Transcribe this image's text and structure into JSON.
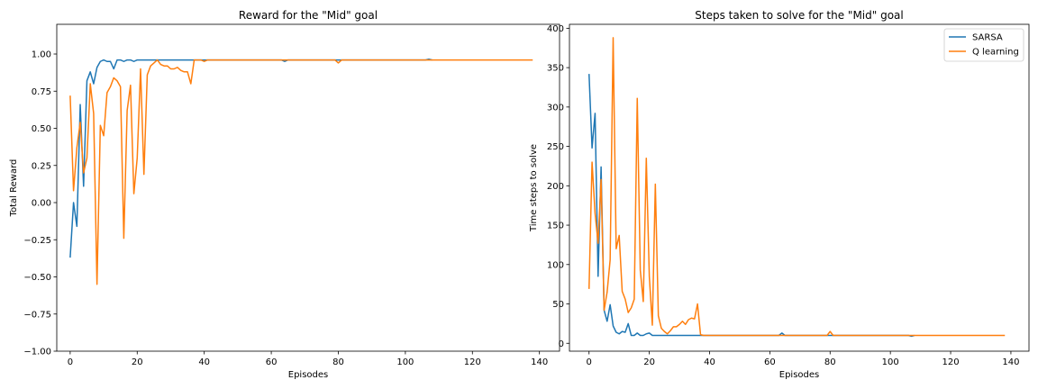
{
  "chart_data": [
    {
      "type": "line",
      "title": "Reward for the \"Mid\" goal",
      "xlabel": "Episodes",
      "ylabel": "Total Reward",
      "xlim": [
        -4,
        146
      ],
      "ylim": [
        -1.0,
        1.2
      ],
      "xticks": [
        0,
        20,
        40,
        60,
        80,
        100,
        120,
        140
      ],
      "xtick_labels": [
        "0",
        "20",
        "40",
        "60",
        "80",
        "100",
        "120",
        "140"
      ],
      "yticks": [
        -1.0,
        -0.75,
        -0.5,
        -0.25,
        0.0,
        0.25,
        0.5,
        0.75,
        1.0
      ],
      "ytick_labels": [
        "−1.00",
        "−0.75",
        "−0.50",
        "−0.25",
        "0.00",
        "0.25",
        "0.50",
        "0.75",
        "1.00"
      ],
      "grid": false,
      "legend": null,
      "series": [
        {
          "color": "#1f77b4",
          "x": [
            0,
            1,
            2,
            3,
            4,
            5,
            6,
            7,
            8,
            9,
            10,
            11,
            12,
            13,
            14,
            15,
            16,
            17,
            18,
            19,
            20,
            21,
            22,
            23,
            24,
            25,
            30,
            35,
            40,
            50,
            60,
            63,
            64,
            65,
            70,
            80,
            90,
            100,
            106,
            107,
            108
          ],
          "y": [
            -0.37,
            0.0,
            -0.16,
            0.66,
            0.11,
            0.82,
            0.88,
            0.8,
            0.91,
            0.95,
            0.96,
            0.95,
            0.95,
            0.9,
            0.96,
            0.96,
            0.95,
            0.96,
            0.96,
            0.95,
            0.96,
            0.96,
            0.96,
            0.96,
            0.96,
            0.96,
            0.96,
            0.96,
            0.96,
            0.96,
            0.96,
            0.96,
            0.95,
            0.96,
            0.96,
            0.96,
            0.96,
            0.96,
            0.96,
            0.965,
            0.96
          ]
        },
        {
          "name": "Q learning",
          "color": "#ff7f0e",
          "x": [
            0,
            1,
            2,
            3,
            4,
            5,
            6,
            7,
            8,
            9,
            10,
            11,
            12,
            13,
            14,
            15,
            16,
            17,
            18,
            19,
            20,
            21,
            22,
            23,
            24,
            25,
            26,
            27,
            28,
            29,
            30,
            31,
            32,
            33,
            34,
            35,
            36,
            37,
            38,
            39,
            40,
            41,
            42,
            50,
            60,
            70,
            79,
            80,
            81,
            90,
            100,
            110,
            120,
            130,
            138
          ],
          "y": [
            0.72,
            0.08,
            0.37,
            0.54,
            0.2,
            0.3,
            0.8,
            0.6,
            -0.55,
            0.52,
            0.45,
            0.74,
            0.78,
            0.84,
            0.82,
            0.78,
            -0.24,
            0.62,
            0.79,
            0.06,
            0.3,
            0.9,
            0.19,
            0.86,
            0.92,
            0.94,
            0.96,
            0.93,
            0.92,
            0.92,
            0.9,
            0.9,
            0.91,
            0.89,
            0.88,
            0.88,
            0.8,
            0.96,
            0.96,
            0.96,
            0.95,
            0.96,
            0.96,
            0.96,
            0.96,
            0.96,
            0.96,
            0.94,
            0.96,
            0.96,
            0.96,
            0.96,
            0.96,
            0.96,
            0.96
          ]
        }
      ]
    },
    {
      "type": "line",
      "title": "Steps taken to solve for the \"Mid\" goal",
      "xlabel": "Episodes",
      "ylabel": "Time steps to solve",
      "xlim": [
        -6.5,
        146
      ],
      "ylim": [
        -10,
        405
      ],
      "xticks": [
        0,
        20,
        40,
        60,
        80,
        100,
        120,
        140
      ],
      "xtick_labels": [
        "0",
        "20",
        "40",
        "60",
        "80",
        "100",
        "120",
        "140"
      ],
      "yticks": [
        0,
        50,
        100,
        150,
        200,
        250,
        300,
        350,
        400
      ],
      "ytick_labels": [
        "0",
        "50",
        "100",
        "150",
        "200",
        "250",
        "300",
        "350",
        "400"
      ],
      "grid": false,
      "legend": "top-right",
      "legend_entries": [
        "SARSA",
        "Q learning"
      ],
      "series": [
        {
          "name": "SARSA",
          "color": "#1f77b4",
          "x": [
            0,
            1,
            2,
            3,
            4,
            5,
            6,
            7,
            8,
            9,
            10,
            11,
            12,
            13,
            14,
            15,
            16,
            17,
            18,
            19,
            20,
            21,
            22,
            25,
            30,
            40,
            50,
            60,
            63,
            64,
            65,
            70,
            80,
            90,
            100,
            106,
            107,
            108
          ],
          "y": [
            342,
            248,
            292,
            85,
            224,
            42,
            28,
            49,
            22,
            14,
            12,
            15,
            14,
            25,
            10,
            10,
            13,
            10,
            10,
            12,
            13,
            10,
            10,
            10,
            10,
            10,
            10,
            10,
            10,
            13,
            10,
            10,
            10,
            10,
            10,
            10,
            9,
            10
          ]
        },
        {
          "name": "Q learning",
          "color": "#ff7f0e",
          "x": [
            0,
            1,
            2,
            3,
            4,
            5,
            6,
            7,
            8,
            9,
            10,
            11,
            12,
            13,
            14,
            15,
            16,
            17,
            18,
            19,
            20,
            21,
            22,
            23,
            24,
            25,
            26,
            27,
            28,
            29,
            30,
            31,
            32,
            33,
            34,
            35,
            36,
            37,
            38,
            39,
            40,
            41,
            42,
            50,
            60,
            70,
            79,
            80,
            81,
            90,
            100,
            110,
            120,
            130,
            138
          ],
          "y": [
            69,
            230,
            165,
            127,
            208,
            42,
            65,
            106,
            388,
            120,
            137,
            66,
            56,
            39,
            45,
            56,
            311,
            93,
            53,
            235,
            85,
            23,
            202,
            35,
            19,
            15,
            12,
            16,
            21,
            21,
            24,
            28,
            24,
            30,
            32,
            31,
            50,
            11,
            10,
            10,
            10,
            10,
            10,
            10,
            10,
            10,
            10,
            15,
            10,
            10,
            10,
            10,
            10,
            10,
            10
          ]
        }
      ]
    }
  ]
}
